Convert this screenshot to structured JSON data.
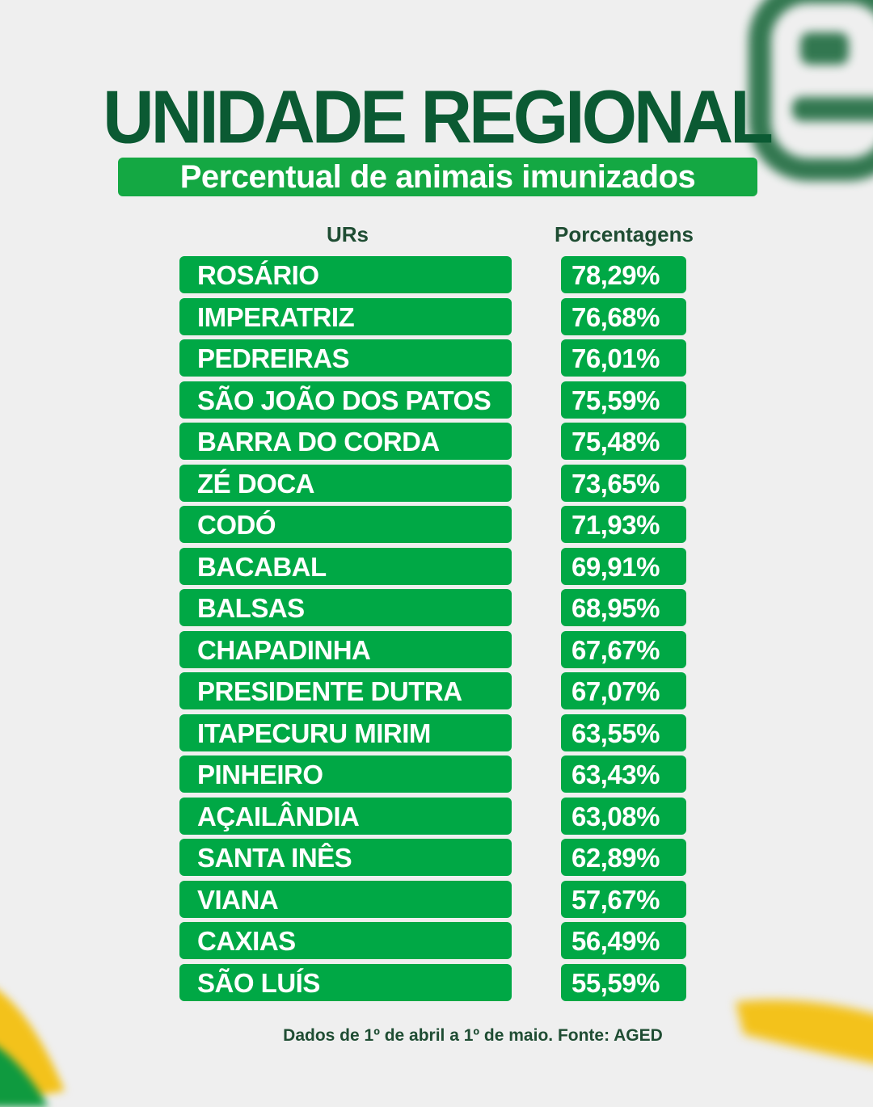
{
  "title": "UNIDADE REGIONAL",
  "subtitle": "Percentual de animais imunizados",
  "columns": {
    "ur": "URs",
    "pct": "Porcentagens"
  },
  "rows": [
    {
      "name": "ROSÁRIO",
      "pct": "78,29%"
    },
    {
      "name": "IMPERATRIZ",
      "pct": "76,68%"
    },
    {
      "name": "PEDREIRAS",
      "pct": "76,01%"
    },
    {
      "name": "SÃO JOÃO DOS PATOS",
      "pct": "75,59%"
    },
    {
      "name": "BARRA DO CORDA",
      "pct": "75,48%"
    },
    {
      "name": "ZÉ DOCA",
      "pct": "73,65%"
    },
    {
      "name": "CODÓ",
      "pct": "71,93%"
    },
    {
      "name": "BACABAL",
      "pct": "69,91%"
    },
    {
      "name": "BALSAS",
      "pct": "68,95%"
    },
    {
      "name": "CHAPADINHA",
      "pct": "67,67%"
    },
    {
      "name": "PRESIDENTE DUTRA",
      "pct": "67,07%"
    },
    {
      "name": "ITAPECURU MIRIM",
      "pct": "63,55%"
    },
    {
      "name": "PINHEIRO",
      "pct": "63,43%"
    },
    {
      "name": "AÇAILÂNDIA",
      "pct": "63,08%"
    },
    {
      "name": "SANTA INÊS",
      "pct": "62,89%"
    },
    {
      "name": "VIANA",
      "pct": "57,67%"
    },
    {
      "name": "CAXIAS",
      "pct": "56,49%"
    },
    {
      "name": "SÃO LUÍS",
      "pct": "55,59%"
    }
  ],
  "footer": "Dados de 1º de abril a 1º de maio. Fonte: AGED",
  "colors": {
    "dark_green": "#0b5a33",
    "green": "#00a845",
    "yellow": "#f3c21b",
    "background": "#efefef"
  }
}
